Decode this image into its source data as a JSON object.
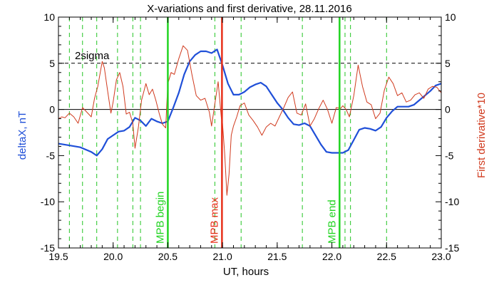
{
  "chart_data": {
    "type": "line",
    "title": "X-variations and first derivative, 28.11.2016",
    "xlabel": "UT, hours",
    "ylabel_left": "deltaX, nT",
    "ylabel_right": "First derivative*10",
    "xlim": [
      19.5,
      23.0
    ],
    "ylim": [
      -15,
      10
    ],
    "xticks": [
      19.5,
      20.0,
      20.5,
      21.0,
      21.5,
      22.0,
      22.5,
      23.0
    ],
    "xtick_labels": [
      "19.5",
      "20.0",
      "20.5",
      "21.0",
      "21.5",
      "22.0",
      "22.5",
      "23.0"
    ],
    "yticks": [
      -15,
      -10,
      -5,
      0,
      5,
      10
    ],
    "ytick_labels": [
      "-15",
      "-10",
      "-5",
      "0",
      "5",
      "10"
    ],
    "sigma_level": 5,
    "sigma_label": "2sigma",
    "zero_level": 0,
    "colors": {
      "deltaX": "#1f4fd8",
      "derivative": "#d03a1e",
      "mpb_begin_end": "#22d422",
      "mpb_max": "#e8301a",
      "dashed_green": "#22c422",
      "axis": "#000000"
    },
    "dashed_lines_x": [
      19.6,
      19.72,
      19.85,
      20.04,
      20.18,
      20.25,
      20.93,
      21.17,
      21.73,
      22.12,
      22.17,
      22.5
    ],
    "markers": [
      {
        "x": 20.5,
        "label": "MPB begin",
        "kind": "begin_end"
      },
      {
        "x": 20.995,
        "label": "MPB max",
        "kind": "max"
      },
      {
        "x": 22.07,
        "label": "MPB end",
        "kind": "begin_end"
      }
    ],
    "series": [
      {
        "name": "deltaX",
        "axis": "left",
        "x": [
          19.5,
          19.6,
          19.7,
          19.8,
          19.85,
          19.9,
          19.95,
          20.0,
          20.05,
          20.1,
          20.15,
          20.2,
          20.25,
          20.3,
          20.35,
          20.4,
          20.45,
          20.5,
          20.55,
          20.6,
          20.65,
          20.7,
          20.75,
          20.8,
          20.85,
          20.9,
          20.95,
          21.0,
          21.05,
          21.1,
          21.15,
          21.2,
          21.25,
          21.3,
          21.35,
          21.4,
          21.45,
          21.5,
          21.55,
          21.6,
          21.65,
          21.7,
          21.75,
          21.8,
          21.85,
          21.9,
          21.95,
          22.0,
          22.05,
          22.1,
          22.15,
          22.2,
          22.25,
          22.3,
          22.35,
          22.4,
          22.45,
          22.5,
          22.55,
          22.6,
          22.65,
          22.7,
          22.75,
          22.8,
          22.85,
          22.9,
          22.95,
          23.0
        ],
        "values": [
          -3.7,
          -3.9,
          -4.1,
          -4.6,
          -5.0,
          -4.3,
          -3.2,
          -2.8,
          -2.4,
          -2.3,
          -1.9,
          -0.9,
          -1.2,
          -1.8,
          -1.0,
          -1.3,
          -1.5,
          -1.3,
          0.2,
          1.8,
          3.8,
          5.2,
          5.9,
          6.3,
          6.3,
          6.1,
          6.5,
          4.8,
          2.8,
          1.6,
          1.6,
          1.9,
          2.4,
          2.7,
          2.9,
          2.5,
          1.6,
          0.7,
          0.0,
          -0.9,
          -1.6,
          -1.7,
          -1.5,
          -1.8,
          -2.8,
          -3.8,
          -4.6,
          -4.7,
          -4.7,
          -4.7,
          -4.4,
          -3.3,
          -2.2,
          -2.0,
          -2.1,
          -2.3,
          -1.9,
          -0.9,
          -0.2,
          0.3,
          0.3,
          0.3,
          0.5,
          1.0,
          1.5,
          2.0,
          2.6,
          2.8
        ]
      },
      {
        "name": "First derivative*10",
        "axis": "right",
        "x": [
          19.5,
          19.53,
          19.56,
          19.6,
          19.64,
          19.68,
          19.72,
          19.76,
          19.8,
          19.83,
          19.86,
          19.9,
          19.92,
          19.95,
          19.98,
          20.0,
          20.03,
          20.06,
          20.09,
          20.12,
          20.15,
          20.18,
          20.2,
          20.23,
          20.26,
          20.3,
          20.33,
          20.36,
          20.39,
          20.42,
          20.45,
          20.48,
          20.5,
          20.53,
          20.56,
          20.6,
          20.64,
          20.68,
          20.72,
          20.76,
          20.8,
          20.84,
          20.88,
          20.9,
          20.93,
          20.96,
          20.99,
          21.0,
          21.02,
          21.04,
          21.06,
          21.08,
          21.1,
          21.13,
          21.16,
          21.2,
          21.24,
          21.28,
          21.32,
          21.36,
          21.4,
          21.44,
          21.48,
          21.52,
          21.56,
          21.6,
          21.64,
          21.68,
          21.72,
          21.76,
          21.8,
          21.84,
          21.88,
          21.92,
          21.96,
          22.0,
          22.04,
          22.08,
          22.1,
          22.13,
          22.16,
          22.2,
          22.24,
          22.28,
          22.32,
          22.36,
          22.4,
          22.44,
          22.48,
          22.52,
          22.56,
          22.6,
          22.64,
          22.68,
          22.72,
          22.76,
          22.8,
          22.84,
          22.88,
          22.92,
          22.96,
          23.0
        ],
        "values": [
          -1.0,
          -0.8,
          -0.9,
          -0.4,
          -0.8,
          -1.5,
          0.2,
          -0.3,
          -0.8,
          1.2,
          2.5,
          5.2,
          4.5,
          2.0,
          -0.4,
          0.8,
          3.2,
          4.0,
          2.5,
          -0.5,
          -0.3,
          -1.5,
          -4.2,
          -2.0,
          1.0,
          2.8,
          1.6,
          2.2,
          1.0,
          -0.4,
          -1.6,
          -2.0,
          2.8,
          4.0,
          3.8,
          5.5,
          6.9,
          6.4,
          3.8,
          1.5,
          1.0,
          1.2,
          -0.3,
          -1.8,
          0.6,
          3.0,
          -1.0,
          -1.5,
          -4.8,
          -9.3,
          -7.0,
          -2.8,
          -1.8,
          -0.8,
          0.4,
          0.7,
          -0.6,
          -1.2,
          -1.9,
          -2.8,
          -1.9,
          -1.5,
          -1.8,
          -0.8,
          0.2,
          1.3,
          1.9,
          -0.4,
          -0.6,
          0.6,
          -1.8,
          -1.0,
          0.1,
          1.0,
          0.0,
          -1.5,
          0.2,
          0.1,
          0.4,
          0.0,
          -0.8,
          1.5,
          4.8,
          2.5,
          0.8,
          0.5,
          -1.0,
          -0.4,
          2.1,
          3.5,
          2.8,
          1.5,
          1.8,
          0.8,
          1.0,
          1.6,
          1.8,
          1.2,
          2.2,
          2.5,
          2.4,
          1.8
        ]
      }
    ]
  }
}
